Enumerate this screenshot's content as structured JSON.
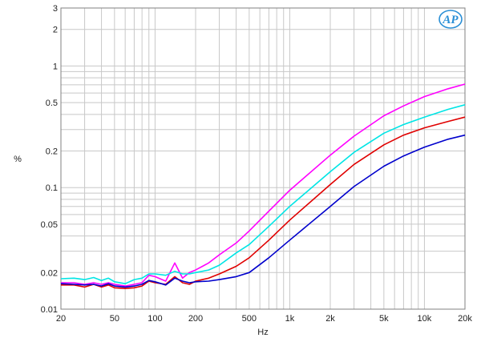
{
  "chart_data": {
    "type": "line",
    "title": "",
    "xlabel": "Hz",
    "ylabel": "%",
    "x_scale": "log",
    "y_scale": "log",
    "xlim": [
      20,
      20000
    ],
    "ylim": [
      0.01,
      3
    ],
    "grid": true,
    "legend": "none",
    "logo_text": "AP",
    "x_ticks": [
      {
        "value": 20,
        "label": "20"
      },
      {
        "value": 50,
        "label": "50"
      },
      {
        "value": 100,
        "label": "100"
      },
      {
        "value": 200,
        "label": "200"
      },
      {
        "value": 500,
        "label": "500"
      },
      {
        "value": 1000,
        "label": "1k"
      },
      {
        "value": 2000,
        "label": "2k"
      },
      {
        "value": 5000,
        "label": "5k"
      },
      {
        "value": 10000,
        "label": "10k"
      },
      {
        "value": 20000,
        "label": "20k"
      }
    ],
    "y_ticks": [
      {
        "value": 0.01,
        "label": "0.01"
      },
      {
        "value": 0.02,
        "label": "0.02"
      },
      {
        "value": 0.05,
        "label": "0.05"
      },
      {
        "value": 0.1,
        "label": "0.1"
      },
      {
        "value": 0.2,
        "label": "0.2"
      },
      {
        "value": 0.5,
        "label": "0.5"
      },
      {
        "value": 1,
        "label": "1"
      },
      {
        "value": 2,
        "label": "2"
      },
      {
        "value": 3,
        "label": "3"
      }
    ],
    "series": [
      {
        "color": "#ff00ff",
        "x": [
          20,
          25,
          30,
          35,
          40,
          45,
          50,
          60,
          70,
          80,
          90,
          100,
          120,
          140,
          160,
          180,
          200,
          250,
          300,
          400,
          500,
          700,
          1000,
          2000,
          3000,
          5000,
          7000,
          10000,
          15000,
          20000
        ],
        "y": [
          0.0165,
          0.0165,
          0.016,
          0.0165,
          0.016,
          0.0165,
          0.016,
          0.0155,
          0.016,
          0.0165,
          0.019,
          0.0185,
          0.017,
          0.024,
          0.018,
          0.02,
          0.021,
          0.024,
          0.028,
          0.035,
          0.044,
          0.064,
          0.095,
          0.185,
          0.265,
          0.39,
          0.47,
          0.56,
          0.65,
          0.71
        ]
      },
      {
        "color": "#00e5e5",
        "x": [
          20,
          25,
          30,
          35,
          40,
          45,
          50,
          60,
          70,
          80,
          90,
          100,
          120,
          140,
          160,
          180,
          200,
          250,
          300,
          400,
          500,
          700,
          1000,
          2000,
          3000,
          5000,
          7000,
          10000,
          15000,
          20000
        ],
        "y": [
          0.0178,
          0.018,
          0.0175,
          0.0182,
          0.0172,
          0.018,
          0.0168,
          0.0162,
          0.0175,
          0.018,
          0.0195,
          0.0195,
          0.019,
          0.0205,
          0.0195,
          0.0195,
          0.02,
          0.021,
          0.023,
          0.029,
          0.034,
          0.048,
          0.07,
          0.135,
          0.195,
          0.28,
          0.33,
          0.38,
          0.44,
          0.48
        ]
      },
      {
        "color": "#e00000",
        "x": [
          20,
          25,
          30,
          35,
          40,
          45,
          50,
          60,
          70,
          80,
          90,
          100,
          120,
          140,
          160,
          180,
          200,
          250,
          300,
          400,
          500,
          700,
          1000,
          2000,
          3000,
          5000,
          7000,
          10000,
          15000,
          20000
        ],
        "y": [
          0.0158,
          0.0158,
          0.0152,
          0.016,
          0.0152,
          0.0158,
          0.015,
          0.0148,
          0.015,
          0.0155,
          0.017,
          0.0165,
          0.016,
          0.0185,
          0.0165,
          0.016,
          0.017,
          0.018,
          0.0195,
          0.0225,
          0.0265,
          0.037,
          0.054,
          0.106,
          0.155,
          0.225,
          0.27,
          0.31,
          0.35,
          0.38
        ]
      },
      {
        "color": "#0000cc",
        "x": [
          20,
          25,
          30,
          35,
          40,
          45,
          50,
          60,
          70,
          80,
          90,
          100,
          120,
          140,
          160,
          180,
          200,
          250,
          300,
          400,
          500,
          700,
          1000,
          2000,
          3000,
          5000,
          7000,
          10000,
          15000,
          20000
        ],
        "y": [
          0.0162,
          0.016,
          0.0158,
          0.016,
          0.0155,
          0.0162,
          0.0155,
          0.0152,
          0.0155,
          0.016,
          0.0172,
          0.0168,
          0.0158,
          0.018,
          0.017,
          0.0165,
          0.0168,
          0.017,
          0.0175,
          0.0185,
          0.02,
          0.0265,
          0.037,
          0.07,
          0.102,
          0.15,
          0.182,
          0.215,
          0.25,
          0.27
        ]
      }
    ]
  }
}
